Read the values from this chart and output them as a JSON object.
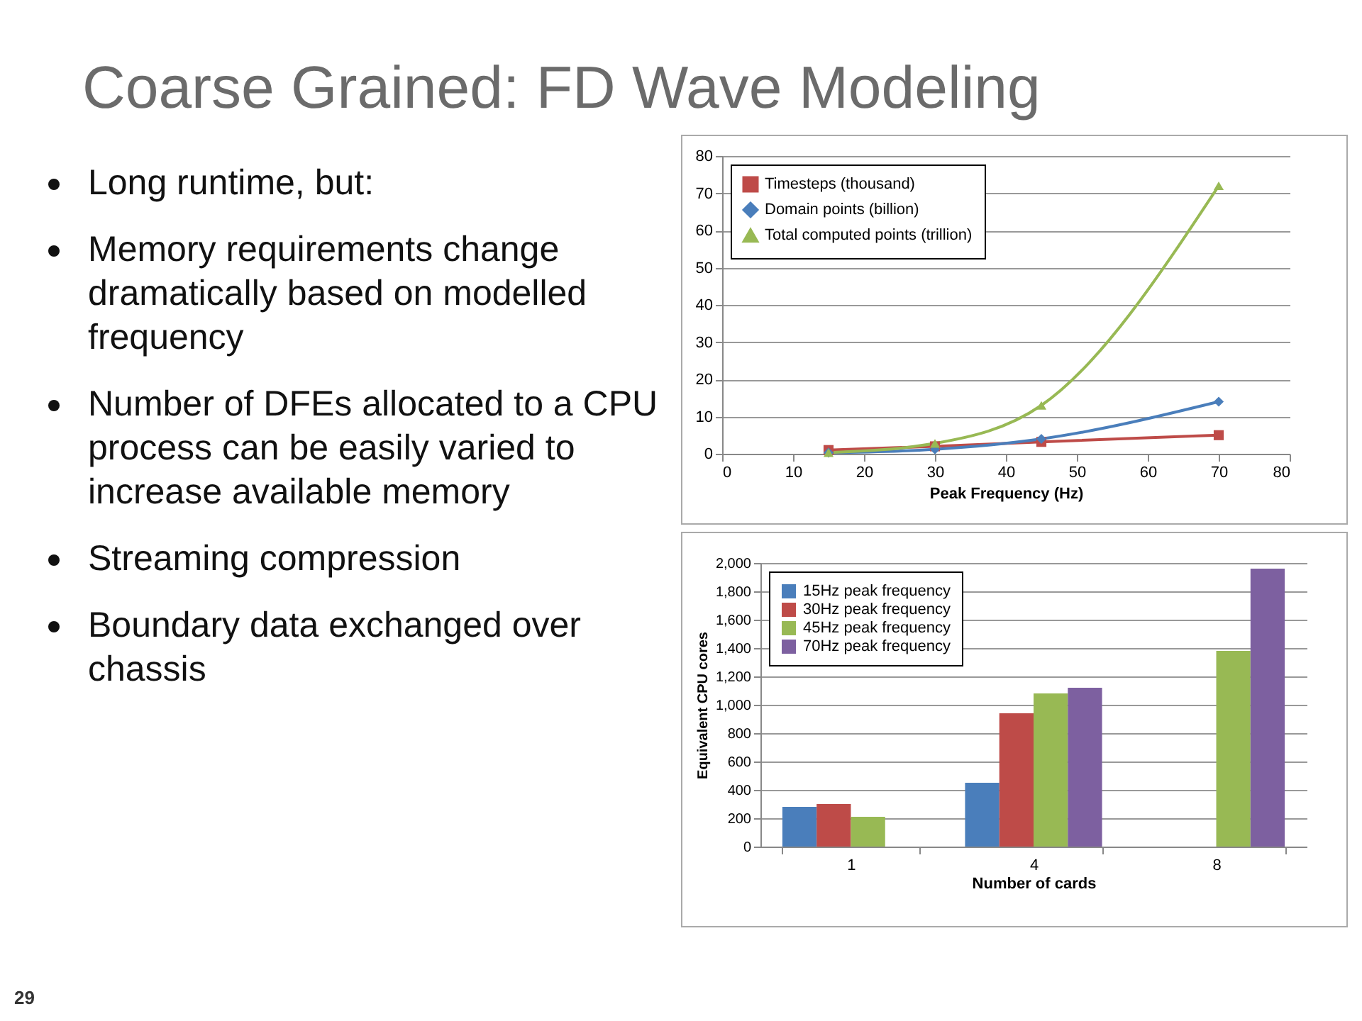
{
  "chart_data": [
    {
      "type": "other",
      "title": "Coarse Grained: FD Wave Modeling",
      "annotations": [
        "Long runtime, but:",
        "Memory requirements change dramatically based on modelled frequency",
        "Number of DFEs allocated to a CPU process can be easily varied to increase available memory",
        "Streaming compression",
        "Boundary data exchanged over chassis",
        "29"
      ]
    },
    {
      "type": "line",
      "xlabel": "Peak Frequency (Hz)",
      "x": [
        15,
        30,
        45,
        70
      ],
      "xlim": [
        0,
        80
      ],
      "xticks": [
        0,
        10,
        20,
        30,
        40,
        50,
        60,
        70,
        80
      ],
      "ylim": [
        0,
        80
      ],
      "yticks": [
        0,
        10,
        20,
        30,
        40,
        50,
        60,
        70,
        80
      ],
      "grid": "y",
      "legend": "top left",
      "line_style": "solid",
      "series": [
        {
          "name": "Timesteps (thousand)",
          "color": "#be4b48",
          "marker": "square",
          "values": [
            1,
            2,
            3.2,
            5
          ]
        },
        {
          "name": "Domain points (billion)",
          "color": "#4a7ebb",
          "marker": "diamond",
          "values": [
            0.3,
            1.2,
            4,
            14
          ]
        },
        {
          "name": "Total computed points (trillion)",
          "color": "#98b954",
          "marker": "triangle",
          "values": [
            0.3,
            2.8,
            13,
            72
          ]
        }
      ]
    },
    {
      "type": "bar",
      "xlabel": "Number of cards",
      "ylabel": "Equivalent CPU cores",
      "categories": [
        "1",
        "4",
        "8"
      ],
      "ylim": [
        0,
        2000
      ],
      "yticks": [
        0,
        200,
        400,
        600,
        800,
        {
          "value": 1000,
          "label": "1,000"
        },
        {
          "value": 1200,
          "label": "1,200"
        },
        {
          "value": 1400,
          "label": "1,400"
        },
        {
          "value": 1600,
          "label": "1,600"
        },
        {
          "value": 1800,
          "label": "1,800"
        },
        {
          "value": 2000,
          "label": "2,000"
        }
      ],
      "grid": "y",
      "legend": "top left",
      "series": [
        {
          "name": "15Hz peak frequency",
          "color": "#4a7ebb",
          "values": [
            280,
            450,
            null
          ]
        },
        {
          "name": "30Hz peak frequency",
          "color": "#be4b48",
          "values": [
            300,
            940,
            null
          ]
        },
        {
          "name": "45Hz peak frequency",
          "color": "#98b954",
          "values": [
            210,
            1080,
            1380
          ]
        },
        {
          "name": "70Hz peak frequency",
          "color": "#7d60a0",
          "values": [
            null,
            1120,
            1960
          ]
        }
      ]
    }
  ]
}
